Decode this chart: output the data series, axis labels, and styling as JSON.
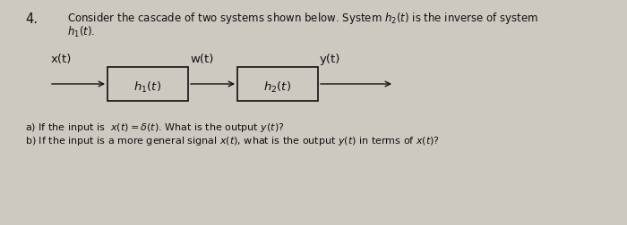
{
  "background_color": "#cdc8c0",
  "problem_number": "4.",
  "title_line1": "Consider the cascade of two systems shown below. System $h_2(t)$ is the inverse of system",
  "title_line2": "$h_1(t)$.",
  "block1_label": "$h_1(t)$",
  "block2_label": "$h_2(t)$",
  "input_label": "x(t)",
  "middle_label": "w(t)",
  "output_label": "y(t)",
  "question_a": "a) If the input is  $x(t) = \\delta(t)$. What is the output $y(t)$?",
  "question_b": "b) If the input is a more general signal $x(t)$, what is the output $y(t)$ in terms of $x(t)$?",
  "text_color": "#111111",
  "box_facecolor": "#cdc8c0",
  "box_edgecolor": "#111111",
  "arrow_color": "#111111",
  "font_size_title": 8.5,
  "font_size_block": 9.5,
  "font_size_signal": 9.5,
  "font_size_questions": 8.0,
  "font_size_number": 10.5
}
